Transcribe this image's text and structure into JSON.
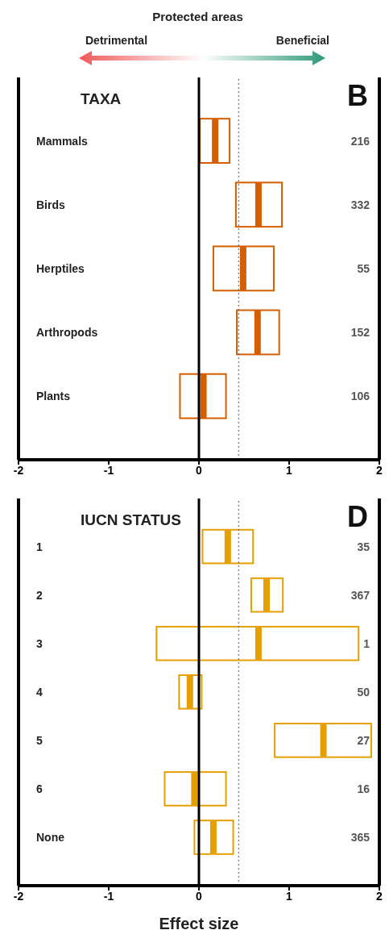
{
  "chart_data": [
    {
      "type": "box",
      "orientation": "horizontal",
      "title": "TAXA",
      "categories": [
        "Mammals",
        "Birds",
        "Herptiles",
        "Arthropods",
        "Plants"
      ],
      "color": "#d55e00",
      "boxes": [
        {
          "low": 0.01,
          "q1": 0.01,
          "median": 0.18,
          "q3": 0.34,
          "high": 0.34
        },
        {
          "low": 0.41,
          "q1": 0.41,
          "median": 0.66,
          "q3": 0.92,
          "high": 0.92
        },
        {
          "low": 0.16,
          "q1": 0.16,
          "median": 0.49,
          "q3": 0.83,
          "high": 0.83
        },
        {
          "low": 0.42,
          "q1": 0.42,
          "median": 0.65,
          "q3": 0.89,
          "high": 0.89
        },
        {
          "low": -0.21,
          "q1": -0.21,
          "median": 0.05,
          "q3": 0.3,
          "high": 0.3
        }
      ],
      "xlim": [
        -2,
        2
      ],
      "xticks": [
        -2,
        -1,
        0,
        1,
        2
      ],
      "ref_lines": [
        {
          "axis": "x",
          "value": 0,
          "line_style": "solid",
          "color": "#000000"
        },
        {
          "axis": "x",
          "value": 0.44,
          "line_style": "dotted",
          "color": "#555555"
        }
      ],
      "annotations": [
        "Protected areas",
        "Detrimental",
        "Beneficial",
        "B",
        "216",
        "332",
        "55",
        "152",
        "106"
      ]
    },
    {
      "type": "box",
      "orientation": "horizontal",
      "title": "IUCN STATUS",
      "xlabel": "Effect size",
      "categories": [
        "1",
        "2",
        "3",
        "4",
        "5",
        "6",
        "None"
      ],
      "color": "#e69f00",
      "boxes": [
        {
          "low": 0.04,
          "q1": 0.04,
          "median": 0.32,
          "q3": 0.6,
          "high": 0.6
        },
        {
          "low": 0.58,
          "q1": 0.58,
          "median": 0.75,
          "q3": 0.93,
          "high": 0.93
        },
        {
          "low": -0.47,
          "q1": -0.47,
          "median": 0.66,
          "q3": 1.77,
          "high": 1.77
        },
        {
          "low": -0.22,
          "q1": -0.22,
          "median": -0.1,
          "q3": 0.03,
          "high": 0.03
        },
        {
          "low": 0.84,
          "q1": 0.84,
          "median": 1.38,
          "q3": 1.91,
          "high": 1.91
        },
        {
          "low": -0.38,
          "q1": -0.38,
          "median": -0.05,
          "q3": 0.3,
          "high": 0.3
        },
        {
          "low": -0.05,
          "q1": -0.05,
          "median": 0.16,
          "q3": 0.38,
          "high": 0.38
        }
      ],
      "xlim": [
        -2,
        2
      ],
      "xticks": [
        -2,
        -1,
        0,
        1,
        2
      ],
      "ref_lines": [
        {
          "axis": "x",
          "value": 0,
          "line_style": "solid",
          "color": "#000000"
        },
        {
          "axis": "x",
          "value": 0.44,
          "line_style": "dotted",
          "color": "#555555"
        }
      ],
      "annotations": [
        "D",
        "35",
        "367",
        "1",
        "50",
        "27",
        "16",
        "365"
      ]
    }
  ]
}
